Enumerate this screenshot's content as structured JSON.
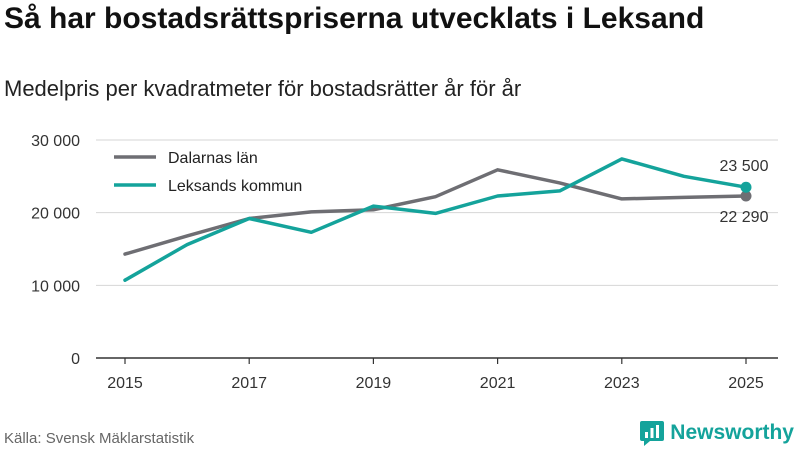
{
  "header": {
    "title": "Så har bostadsrättspriserna utvecklats i Leksand",
    "subtitle": "Medelpris per kvadratmeter för bostadsrätter år för år"
  },
  "footer": {
    "source": "Källa: Svensk Mäklarstatistik",
    "brand": "Newsworthy"
  },
  "colors": {
    "dalarna": "#6e6e73",
    "leksand": "#14a39b",
    "grid": "#d6d6d6",
    "axis": "#333333"
  },
  "chart_data": {
    "type": "line",
    "title": "Så har bostadsrättspriserna utvecklats i Leksand",
    "subtitle": "Medelpris per kvadratmeter för bostadsrätter år för år",
    "xlabel": "",
    "ylabel": "",
    "x": [
      2015,
      2016,
      2017,
      2018,
      2019,
      2020,
      2021,
      2022,
      2023,
      2024,
      2025
    ],
    "xticks": [
      2015,
      2017,
      2019,
      2021,
      2023,
      2025
    ],
    "xtick_labels": [
      "2015",
      "2017",
      "2019",
      "2021",
      "2023",
      "2025"
    ],
    "ylim": [
      0,
      30000
    ],
    "yticks": [
      0,
      10000,
      20000,
      30000
    ],
    "ytick_labels": [
      "0",
      "10 000",
      "20 000",
      "30 000"
    ],
    "grid": true,
    "legend_position": "top-left",
    "series": [
      {
        "name": "Dalarnas län",
        "color_key": "dalarna",
        "values": [
          14300,
          16800,
          19200,
          20100,
          20400,
          22200,
          25900,
          24100,
          21900,
          22100,
          22290
        ],
        "end_label": "22 290"
      },
      {
        "name": "Leksands kommun",
        "color_key": "leksand",
        "values": [
          10700,
          15600,
          19200,
          17300,
          20900,
          19900,
          22300,
          23000,
          27400,
          25000,
          23500
        ],
        "end_label": "23 500"
      }
    ]
  }
}
